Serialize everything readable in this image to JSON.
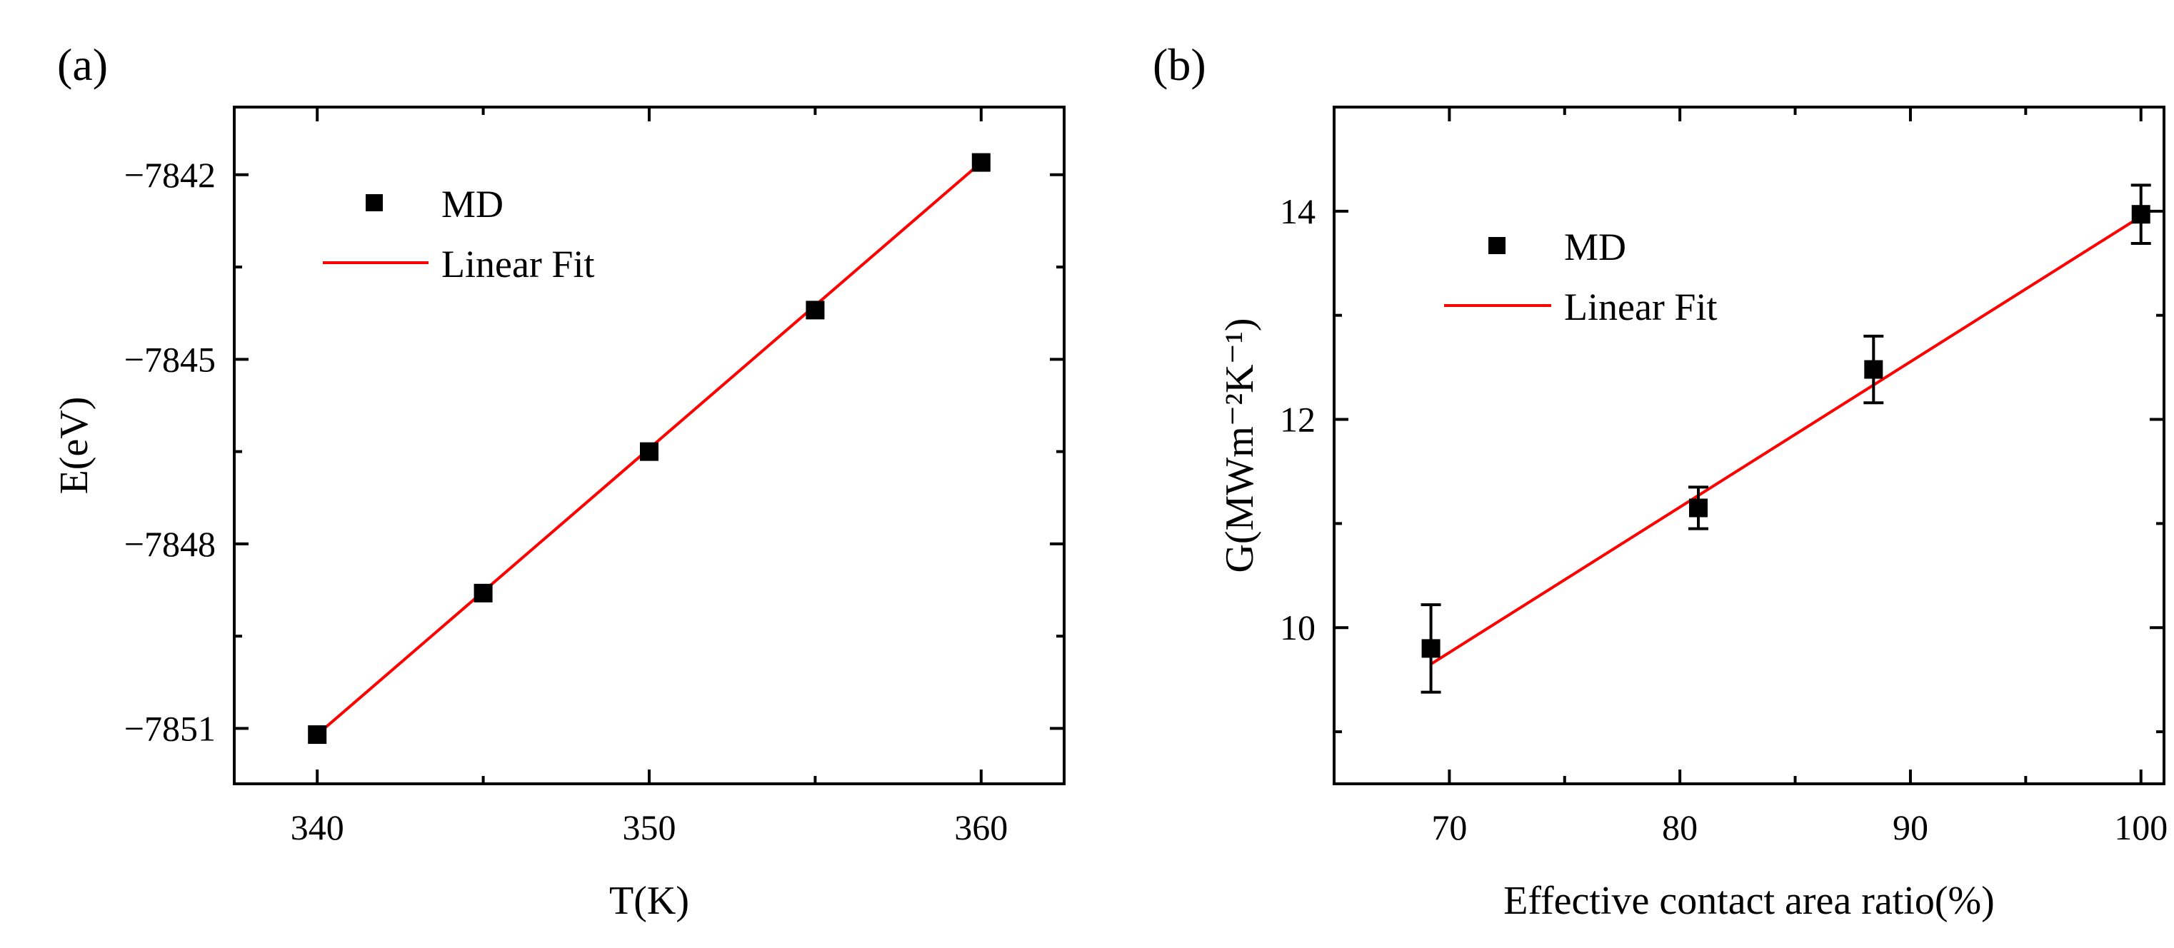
{
  "chart_data": [
    {
      "type": "scatter",
      "panel_label": "(a)",
      "xlabel": "T(K)",
      "ylabel": "E(eV)",
      "xlim": [
        337.5,
        362.5
      ],
      "ylim": [
        -7851.9,
        -7840.9
      ],
      "xticks": [
        340,
        350,
        360
      ],
      "yticks": [
        -7842,
        -7845,
        -7848,
        -7851
      ],
      "ytick_labels": [
        "−7842",
        "−7845",
        "−7848",
        "−7851"
      ],
      "series": [
        {
          "name": "MD",
          "kind": "points",
          "color": "#000000",
          "x": [
            340,
            345,
            350,
            355,
            360
          ],
          "y": [
            -7851.1,
            -7848.8,
            -7846.5,
            -7844.2,
            -7841.8
          ]
        },
        {
          "name": "Linear Fit",
          "kind": "line",
          "color": "#ff0000",
          "x": [
            340,
            360
          ],
          "y": [
            -7851.1,
            -7841.8
          ]
        }
      ],
      "legend": {
        "position": "top-left",
        "entries": [
          "MD",
          "Linear Fit"
        ]
      }
    },
    {
      "type": "scatter",
      "panel_label": "(b)",
      "xlabel": "Effective contact area ratio(%)",
      "ylabel": "G(MWm⁻²K⁻¹)",
      "xlim": [
        65,
        101
      ],
      "ylim": [
        8.5,
        15
      ],
      "xticks": [
        70,
        80,
        90,
        100
      ],
      "yticks": [
        10,
        12,
        14
      ],
      "series": [
        {
          "name": "MD",
          "kind": "points",
          "color": "#000000",
          "x": [
            69.2,
            80.8,
            88.4,
            100
          ],
          "y": [
            9.8,
            11.15,
            12.48,
            13.97
          ],
          "error": [
            0.42,
            0.2,
            0.32,
            0.28
          ]
        },
        {
          "name": "Linear Fit",
          "kind": "line",
          "color": "#ff0000",
          "x": [
            69.2,
            100
          ],
          "y": [
            9.65,
            13.95
          ]
        }
      ],
      "legend": {
        "position": "top-left",
        "entries": [
          "MD",
          "Linear Fit"
        ]
      }
    }
  ]
}
